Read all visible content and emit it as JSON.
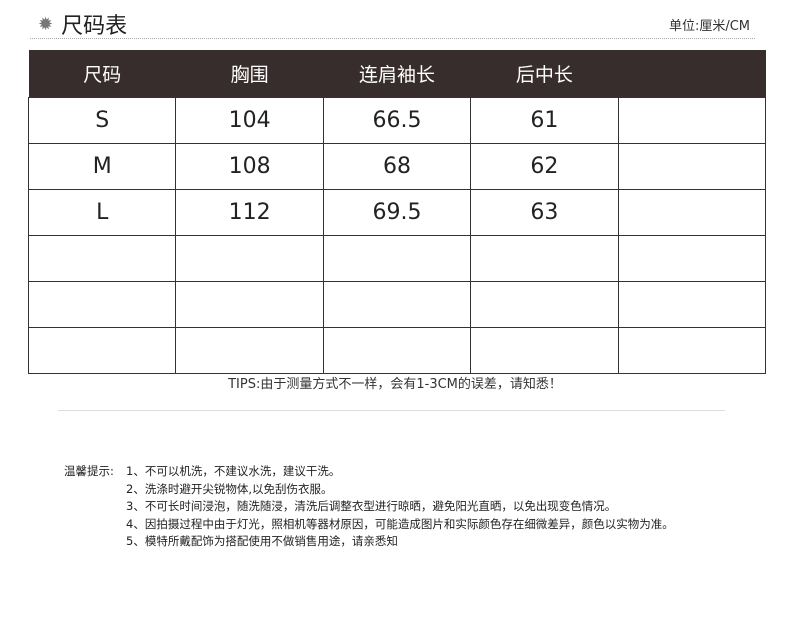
{
  "header": {
    "title": "尺码表",
    "icon": "sun-gear-icon",
    "unit": "单位:厘米/CM"
  },
  "table": {
    "columns": [
      "尺码",
      "胸围",
      "连肩袖长",
      "后中长",
      ""
    ],
    "rows": [
      [
        "S",
        "104",
        "66.5",
        "61",
        ""
      ],
      [
        "M",
        "108",
        "68",
        "62",
        ""
      ],
      [
        "L",
        "112",
        "69.5",
        "63",
        ""
      ],
      [
        "",
        "",
        "",
        "",
        ""
      ],
      [
        "",
        "",
        "",
        "",
        ""
      ],
      [
        "",
        "",
        "",
        "",
        ""
      ]
    ]
  },
  "tips": "TIPS:由于测量方式不一样，会有1-3CM的误差，请知悉！",
  "notes": {
    "label": "温馨提示:",
    "items": [
      "1、不可以机洗，不建议水洗，建议干洗。",
      "2、洗涤时避开尖锐物体,以免刮伤衣服。",
      "3、不可长时间浸泡，随洗随浸，清洗后调整衣型进行晾晒，避免阳光直晒，以免出现变色情况。",
      "4、因拍摄过程中由于灯光，照相机等器材原因，可能造成图片和实际颜色存在细微差异，颜色以实物为准。",
      "5、模特所戴配饰为搭配使用不做销售用途，请亲悉知"
    ]
  },
  "colors": {
    "header_bg": "#372d2c"
  }
}
